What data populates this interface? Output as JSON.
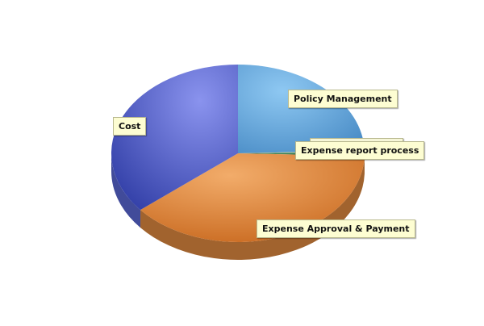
{
  "chart_data": {
    "type": "pie",
    "title": "",
    "slices": [
      {
        "label": "Policy Management",
        "value": 24.5,
        "color": "#6aaee3"
      },
      {
        "label": "Booking Process",
        "value": 0.3,
        "color": "#c9c98e"
      },
      {
        "label": "Expense report process",
        "value": 0.7,
        "color": "#2f6a4a"
      },
      {
        "label": "Expense Approval & Payment",
        "value": 38.5,
        "color": "#e08a40"
      },
      {
        "label": "Cost",
        "value": 36.0,
        "color": "#5a68d6"
      }
    ],
    "legend": "none",
    "labels": "callout boxes"
  }
}
